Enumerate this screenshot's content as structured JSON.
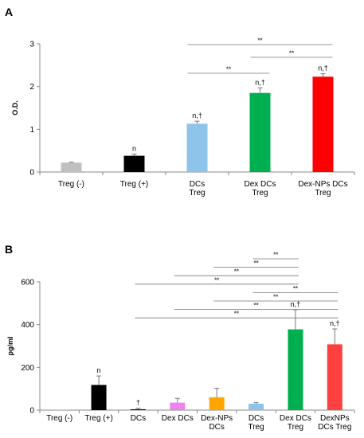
{
  "chart_data": [
    {
      "panel": "A",
      "type": "bar",
      "ylabel": "O.D.",
      "ylim": [
        0,
        3
      ],
      "yticks": [
        "0",
        "1",
        "2",
        "3"
      ],
      "categories": [
        "Treg (-)",
        "Treg (+)",
        "DCs\nTreg",
        "Dex DCs\nTreg",
        "Dex-NPs DCs\nTreg"
      ],
      "values": [
        0.22,
        0.38,
        1.13,
        1.85,
        2.23
      ],
      "errors": [
        0.01,
        0.04,
        0.06,
        0.12,
        0.07
      ],
      "colors": [
        "#c0c0c0",
        "#000000",
        "#8ec3ea",
        "#00b050",
        "#ff0000"
      ],
      "annotations": [
        "",
        "n",
        "n,†",
        "n,†",
        "n,†"
      ],
      "significance": [
        {
          "from": 2,
          "to": 3,
          "label": "**",
          "y": 2.35
        },
        {
          "from": 3,
          "to": 4,
          "label": "**",
          "y": 2.75
        },
        {
          "from": 2,
          "to": 4,
          "label": "**",
          "y": 2.95
        }
      ]
    },
    {
      "panel": "B",
      "type": "bar",
      "ylabel": "pg/ml",
      "ylim": [
        0,
        600
      ],
      "yticks": [
        "0",
        "200",
        "400",
        "600"
      ],
      "categories": [
        "Treg (-)",
        "Treg (+)",
        "DCs",
        "Dex DCs",
        "Dex-NPs\nDCs",
        "DCs\nTreg",
        "Dex DCs\nTreg",
        "DexNPs\nDCs Treg"
      ],
      "values": [
        0,
        118,
        4,
        35,
        60,
        30,
        378,
        308
      ],
      "errors": [
        0,
        42,
        5,
        20,
        42,
        5,
        92,
        72
      ],
      "colors": [
        "#c0c0c0",
        "#000000",
        "#000000",
        "#ee82ee",
        "#ffa500",
        "#8ec3ea",
        "#00b050",
        "#ff4040"
      ],
      "annotations": [
        "",
        "n",
        "†",
        "",
        "",
        "",
        "n,†",
        "n,†"
      ],
      "significance": [
        {
          "from": 5,
          "to": 6,
          "label": "**"
        },
        {
          "from": 4,
          "to": 6,
          "label": "**"
        },
        {
          "from": 3,
          "to": 6,
          "label": "**"
        },
        {
          "from": 2,
          "to": 6,
          "label": "**"
        },
        {
          "from": 5,
          "to": 7,
          "label": "**"
        },
        {
          "from": 4,
          "to": 7,
          "label": "**"
        },
        {
          "from": 3,
          "to": 7,
          "label": "**"
        },
        {
          "from": 2,
          "to": 7,
          "label": "**"
        }
      ]
    }
  ]
}
